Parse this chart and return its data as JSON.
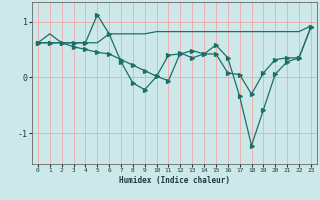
{
  "xlabel": "Humidex (Indice chaleur)",
  "xlim": [
    -0.5,
    23.5
  ],
  "ylim": [
    -1.55,
    1.35
  ],
  "yticks": [
    -1,
    0,
    1
  ],
  "xticks": [
    0,
    1,
    2,
    3,
    4,
    5,
    6,
    7,
    8,
    9,
    10,
    11,
    12,
    13,
    14,
    15,
    16,
    17,
    18,
    19,
    20,
    21,
    22,
    23
  ],
  "bg_color": "#cce8e8",
  "line_color": "#1a7068",
  "grid_color": "#f0a8a8",
  "line1_x": [
    0,
    1,
    2,
    3,
    4,
    5,
    6,
    7,
    8,
    9,
    10,
    11,
    12,
    13,
    14,
    15,
    16,
    17,
    18,
    19,
    20,
    21,
    22,
    23
  ],
  "line1_y": [
    0.62,
    0.78,
    0.62,
    0.62,
    0.62,
    0.62,
    0.78,
    0.78,
    0.78,
    0.78,
    0.82,
    0.82,
    0.82,
    0.82,
    0.82,
    0.82,
    0.82,
    0.82,
    0.82,
    0.82,
    0.82,
    0.82,
    0.82,
    0.92
  ],
  "line2_x": [
    0,
    1,
    2,
    3,
    4,
    5,
    6,
    7,
    8,
    9,
    10,
    11,
    12,
    13,
    14,
    15,
    16,
    17,
    18,
    19,
    20,
    21,
    22,
    23
  ],
  "line2_y": [
    0.62,
    0.62,
    0.62,
    0.55,
    0.5,
    0.45,
    0.42,
    0.32,
    0.22,
    0.12,
    0.02,
    0.4,
    0.42,
    0.48,
    0.42,
    0.42,
    0.08,
    0.05,
    -0.3,
    0.08,
    0.32,
    0.35,
    0.35,
    0.9
  ],
  "line3_x": [
    0,
    1,
    2,
    3,
    4,
    5,
    6,
    7,
    8,
    9,
    10,
    11,
    12,
    13,
    14,
    15,
    16,
    17,
    18,
    19,
    20,
    21,
    22,
    23
  ],
  "line3_y": [
    0.62,
    0.62,
    0.62,
    0.62,
    0.62,
    1.12,
    0.78,
    0.28,
    -0.1,
    -0.22,
    0.02,
    -0.06,
    0.44,
    0.35,
    0.42,
    0.58,
    0.35,
    -0.34,
    -1.22,
    -0.58,
    0.06,
    0.28,
    0.35,
    0.9
  ]
}
